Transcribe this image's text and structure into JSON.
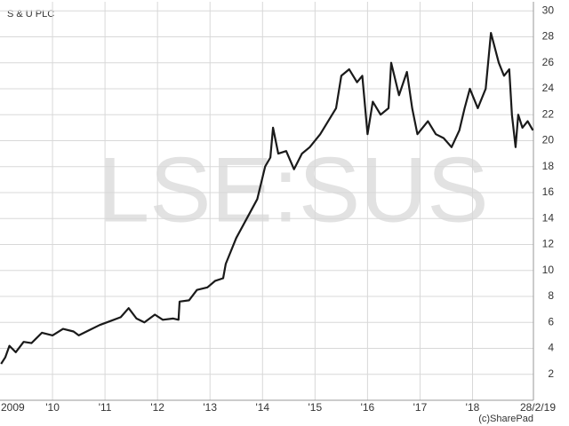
{
  "chart_data": {
    "type": "line",
    "title": "S & U PLC",
    "watermark": "LSE:SUS",
    "credit": "(c)SharePad",
    "x": [
      2009.02,
      2009.1,
      2009.18,
      2009.3,
      2009.45,
      2009.6,
      2009.8,
      2010.0,
      2010.2,
      2010.4,
      2010.5,
      2010.7,
      2010.9,
      2011.1,
      2011.3,
      2011.45,
      2011.6,
      2011.75,
      2011.95,
      2012.1,
      2012.3,
      2012.4,
      2012.42,
      2012.6,
      2012.75,
      2012.95,
      2013.1,
      2013.25,
      2013.3,
      2013.5,
      2013.7,
      2013.9,
      2014.05,
      2014.15,
      2014.2,
      2014.3,
      2014.45,
      2014.6,
      2014.75,
      2014.9,
      2015.1,
      2015.25,
      2015.4,
      2015.5,
      2015.65,
      2015.8,
      2015.9,
      2016.0,
      2016.1,
      2016.25,
      2016.4,
      2016.45,
      2016.6,
      2016.75,
      2016.85,
      2016.95,
      2017.15,
      2017.3,
      2017.45,
      2017.6,
      2017.75,
      2017.85,
      2017.95,
      2018.1,
      2018.25,
      2018.35,
      2018.5,
      2018.6,
      2018.7,
      2018.75,
      2018.82,
      2018.87,
      2018.95,
      2019.05,
      2019.15
    ],
    "series": [
      {
        "name": "S & U PLC",
        "color": "#1a1a1a",
        "values": [
          2.8,
          3.3,
          4.2,
          3.7,
          4.5,
          4.4,
          5.2,
          5.0,
          5.5,
          5.3,
          5.0,
          5.4,
          5.8,
          6.1,
          6.4,
          7.1,
          6.3,
          6.0,
          6.6,
          6.2,
          6.3,
          6.2,
          7.6,
          7.7,
          8.5,
          8.7,
          9.2,
          9.4,
          10.5,
          12.5,
          14.0,
          15.5,
          18.0,
          18.7,
          21.0,
          19.0,
          19.2,
          17.8,
          19.0,
          19.5,
          20.5,
          21.5,
          22.5,
          25.0,
          25.5,
          24.5,
          25.0,
          20.5,
          23.0,
          22.0,
          22.5,
          26.0,
          23.5,
          25.3,
          22.5,
          20.5,
          21.5,
          20.5,
          20.2,
          19.5,
          20.8,
          22.5,
          24.0,
          22.5,
          24.0,
          28.3,
          26.0,
          25.0,
          25.5,
          22.0,
          19.5,
          22.0,
          21.0,
          21.5,
          20.8
        ]
      }
    ],
    "xlim": [
      2009,
      2019.16
    ],
    "xticks": [
      {
        "value": 2009,
        "label": "2009"
      },
      {
        "value": 2010,
        "label": "'10"
      },
      {
        "value": 2011,
        "label": "'11"
      },
      {
        "value": 2012,
        "label": "'12"
      },
      {
        "value": 2013,
        "label": "'13"
      },
      {
        "value": 2014,
        "label": "'14"
      },
      {
        "value": 2015,
        "label": "'15"
      },
      {
        "value": 2016,
        "label": "'16"
      },
      {
        "value": 2017,
        "label": "'17"
      },
      {
        "value": 2018,
        "label": "'18"
      },
      {
        "value": 2019.16,
        "label": "28/2/19"
      }
    ],
    "ylim": [
      0,
      30.7
    ],
    "yticks": [
      2,
      4,
      6,
      8,
      10,
      12,
      14,
      16,
      18,
      20,
      22,
      24,
      26,
      28,
      30
    ],
    "grid": true
  }
}
